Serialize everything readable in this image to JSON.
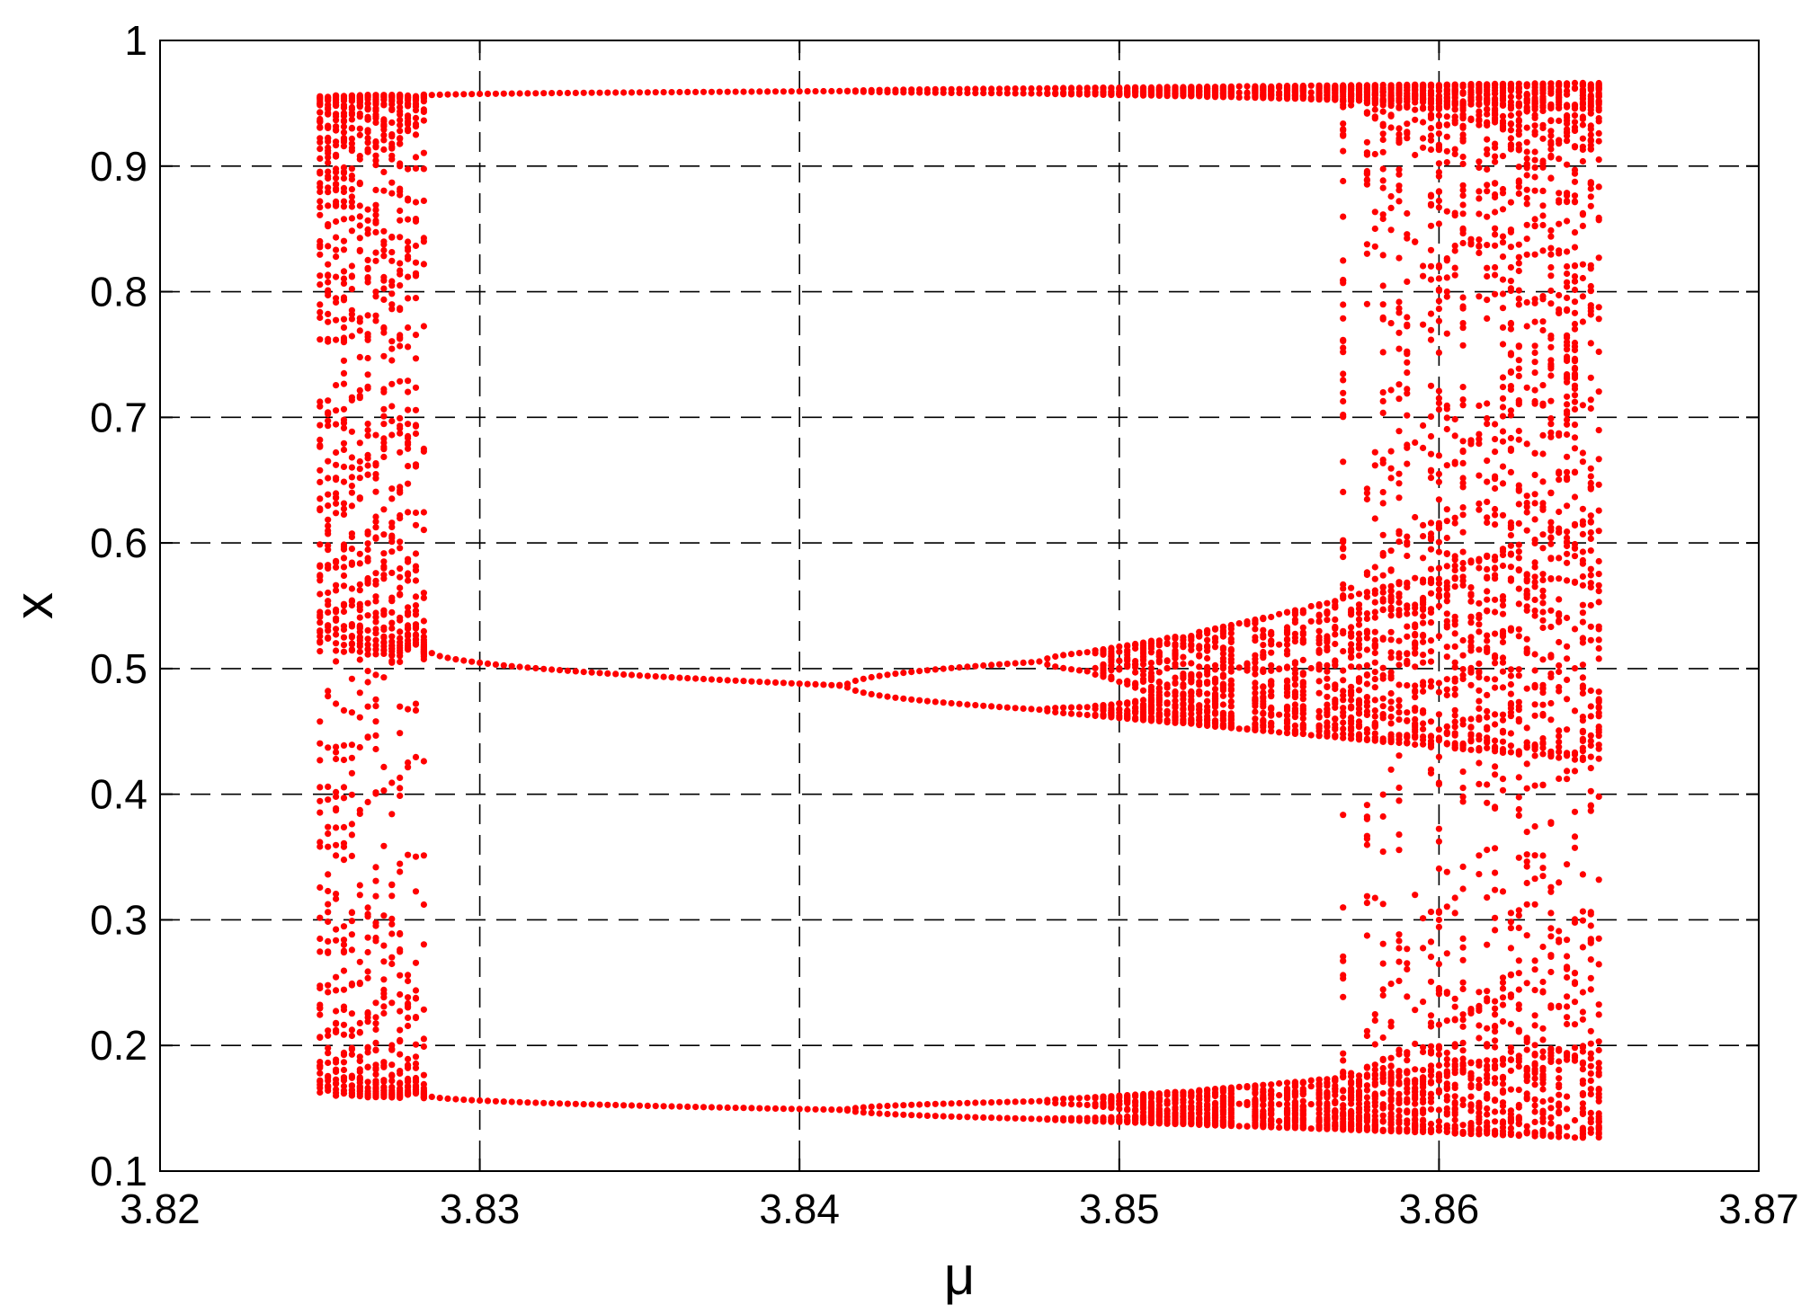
{
  "chart_data": {
    "type": "scatter",
    "title": "",
    "xlabel": "μ",
    "ylabel": "x",
    "xlim": [
      3.82,
      3.87
    ],
    "ylim": [
      0.1,
      1.0
    ],
    "x_ticks": [
      3.82,
      3.83,
      3.84,
      3.85,
      3.86,
      3.87
    ],
    "x_tick_labels": [
      "3.82",
      "3.83",
      "3.84",
      "3.85",
      "3.86",
      "3.87"
    ],
    "y_ticks": [
      0.1,
      0.2,
      0.3,
      0.4,
      0.5,
      0.6,
      0.7,
      0.8,
      0.9,
      1.0
    ],
    "y_tick_labels": [
      "0.1",
      "0.2",
      "0.3",
      "0.4",
      "0.5",
      "0.6",
      "0.7",
      "0.8",
      "0.9",
      "1"
    ],
    "grid": true,
    "marker_color": "#ff0000",
    "regions": {
      "chaotic_left": {
        "mu": [
          3.825,
          3.828
        ],
        "bands": [
          [
            0.155,
            0.44
          ],
          [
            0.46,
            0.955
          ]
        ]
      },
      "period3_window": {
        "mu": [
          3.8284,
          3.857
        ],
        "branches": [
          {
            "mu": [
              3.8284,
              3.845,
              3.857
            ],
            "x": [
              0.957,
              0.96,
              0.962
            ]
          },
          {
            "mu": [
              3.8284,
              3.835,
              3.84,
              3.842
            ],
            "x": [
              0.514,
              0.497,
              0.487,
              0.485
            ]
          },
          {
            "mu": [
              3.8284,
              3.835,
              3.84,
              3.842
            ],
            "x": [
              0.157,
              0.152,
              0.149,
              0.148
            ]
          }
        ],
        "doubling_at": 3.842
      },
      "chaotic_right": {
        "mu": [
          3.857,
          3.865
        ],
        "bands": [
          [
            0.125,
            0.965
          ]
        ]
      }
    }
  }
}
